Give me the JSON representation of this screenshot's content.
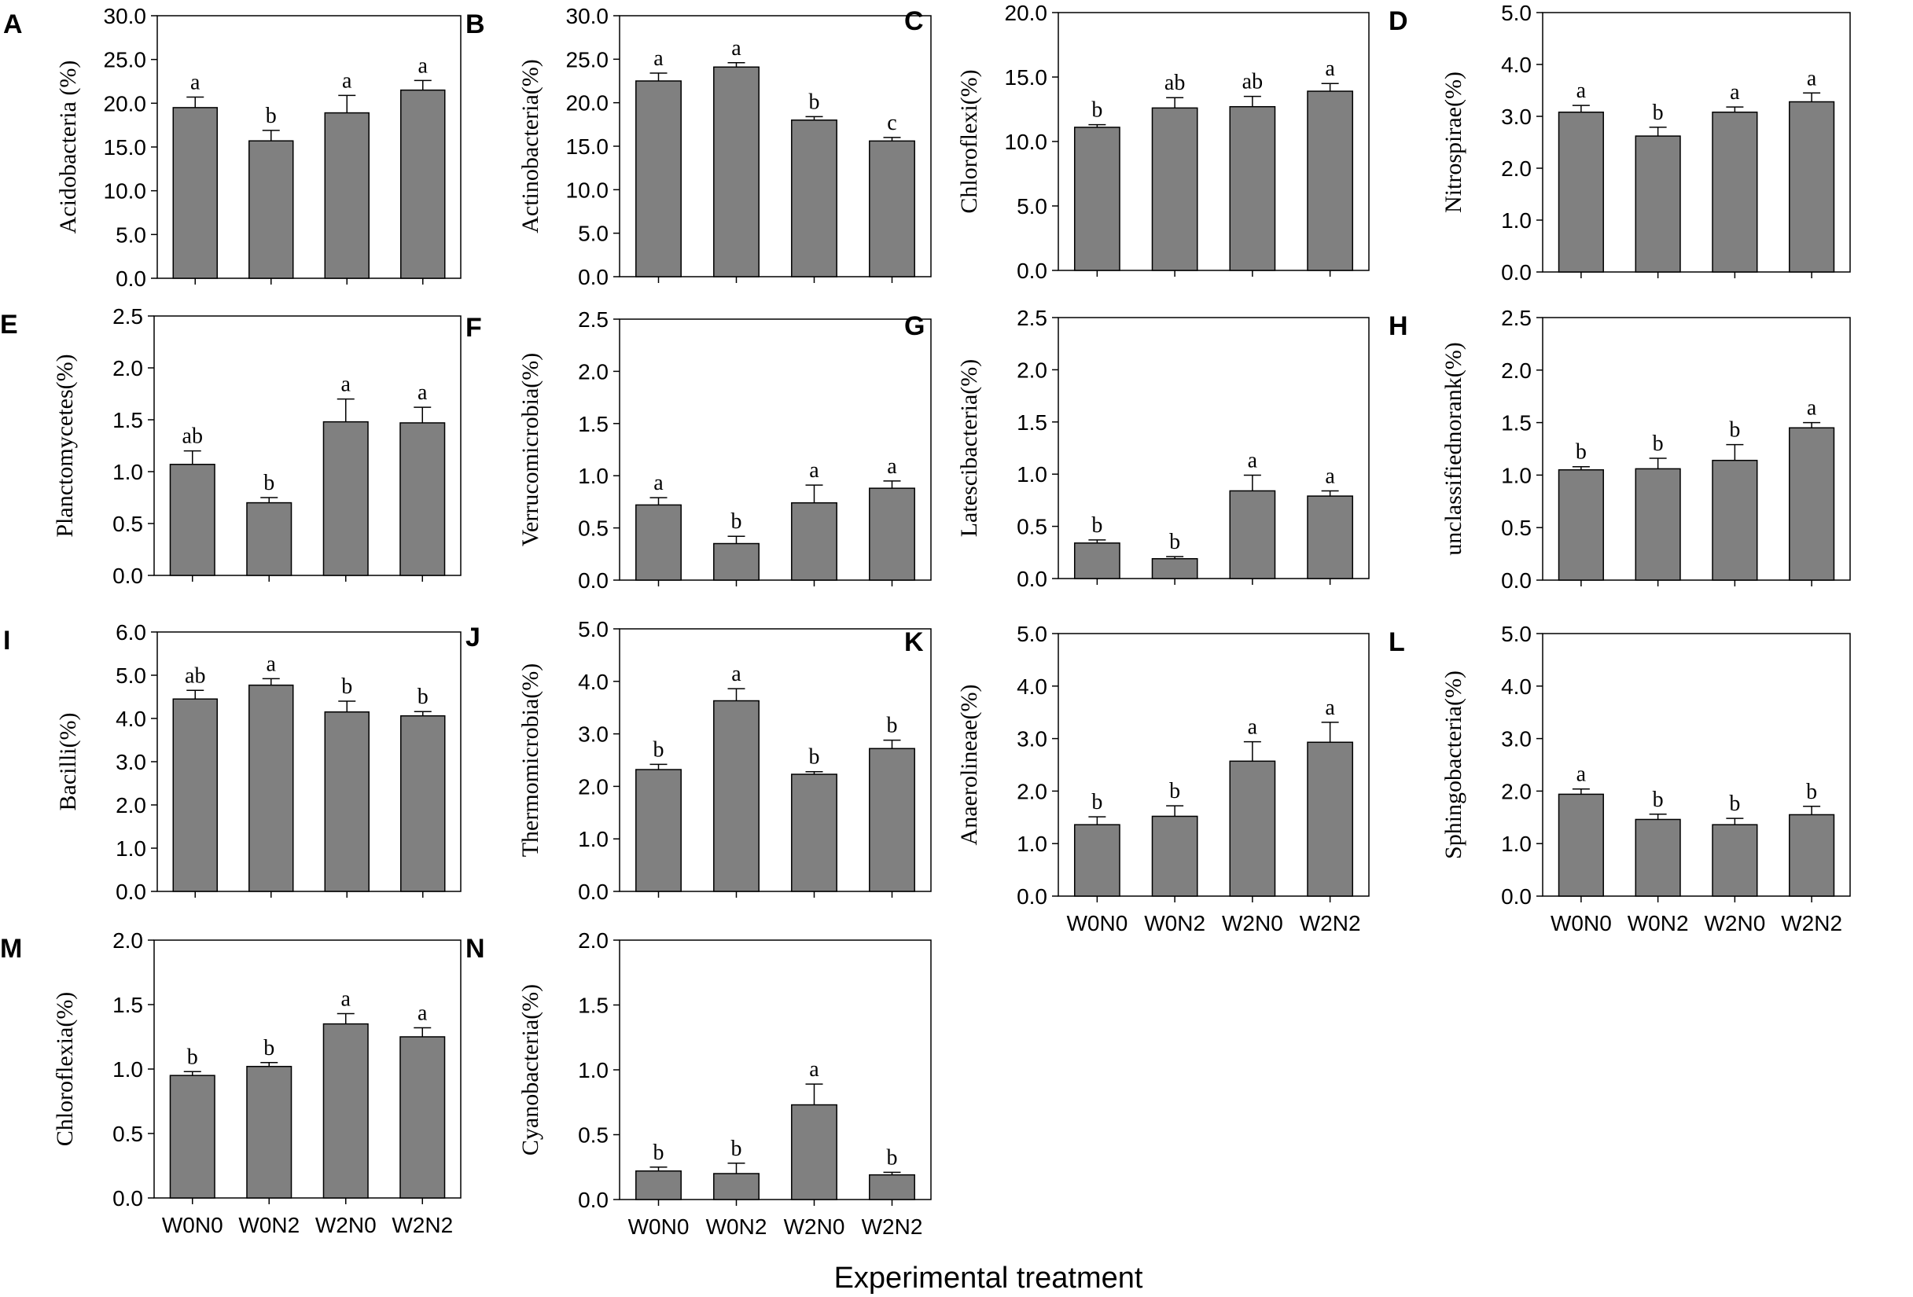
{
  "figure": {
    "xlabel": "Experimental treatment",
    "bar_color": "#808080",
    "edge_color": "#000000"
  },
  "chart_data": [
    {
      "panel": "A",
      "type": "bar",
      "ylabel": "Acidobacteria (%)",
      "categories": [
        "W0N0",
        "W0N2",
        "W2N0",
        "W2N2"
      ],
      "values": [
        19.5,
        15.7,
        18.9,
        21.5
      ],
      "errors": [
        1.2,
        1.2,
        2.0,
        1.1
      ],
      "letters": [
        "a",
        "b",
        "a",
        "a"
      ],
      "ylim": [
        0,
        30
      ],
      "ticks": [
        "0.0",
        "5.0",
        "10.0",
        "15.0",
        "20.0",
        "25.0",
        "30.0"
      ],
      "show_categories": false
    },
    {
      "panel": "B",
      "type": "bar",
      "ylabel": "Actinobacteria(%)",
      "categories": [
        "W0N0",
        "W0N2",
        "W2N0",
        "W2N2"
      ],
      "values": [
        22.5,
        24.1,
        18.0,
        15.6
      ],
      "errors": [
        0.9,
        0.5,
        0.4,
        0.4
      ],
      "letters": [
        "a",
        "a",
        "b",
        "c"
      ],
      "ylim": [
        0,
        30
      ],
      "ticks": [
        "0.0",
        "5.0",
        "10.0",
        "15.0",
        "20.0",
        "25.0",
        "30.0"
      ],
      "show_categories": false
    },
    {
      "panel": "C",
      "type": "bar",
      "ylabel": "Chloroflexi(%)",
      "categories": [
        "W0N0",
        "W0N2",
        "W2N0",
        "W2N2"
      ],
      "values": [
        11.1,
        12.6,
        12.7,
        13.9
      ],
      "errors": [
        0.2,
        0.8,
        0.8,
        0.6
      ],
      "letters": [
        "b",
        "ab",
        "ab",
        "a"
      ],
      "ylim": [
        0,
        20
      ],
      "ticks": [
        "0.0",
        "5.0",
        "10.0",
        "15.0",
        "20.0"
      ],
      "show_categories": false
    },
    {
      "panel": "D",
      "type": "bar",
      "ylabel": "Nitrospirae(%)",
      "categories": [
        "W0N0",
        "W0N2",
        "W2N0",
        "W2N2"
      ],
      "values": [
        3.08,
        2.62,
        3.08,
        3.28
      ],
      "errors": [
        0.13,
        0.17,
        0.1,
        0.17
      ],
      "letters": [
        "a",
        "b",
        "a",
        "a"
      ],
      "ylim": [
        0,
        5
      ],
      "ticks": [
        "0.0",
        "1.0",
        "2.0",
        "3.0",
        "4.0",
        "5.0"
      ],
      "show_categories": false
    },
    {
      "panel": "E",
      "type": "bar",
      "ylabel": "Planctomycetes(%)",
      "categories": [
        "W0N0",
        "W0N2",
        "W2N0",
        "W2N2"
      ],
      "values": [
        1.07,
        0.7,
        1.48,
        1.47
      ],
      "errors": [
        0.13,
        0.05,
        0.22,
        0.15
      ],
      "letters": [
        "ab",
        "b",
        "a",
        "a"
      ],
      "ylim": [
        0,
        2.5
      ],
      "ticks": [
        "0.0",
        "0.5",
        "1.0",
        "1.5",
        "2.0",
        "2.5"
      ],
      "show_categories": false
    },
    {
      "panel": "F",
      "type": "bar",
      "ylabel": "Verrucomicrobia(%)",
      "categories": [
        "W0N0",
        "W0N2",
        "W2N0",
        "W2N2"
      ],
      "values": [
        0.72,
        0.35,
        0.74,
        0.88
      ],
      "errors": [
        0.07,
        0.07,
        0.17,
        0.07
      ],
      "letters": [
        "a",
        "b",
        "a",
        "a"
      ],
      "ylim": [
        0,
        2.5
      ],
      "ticks": [
        "0.0",
        "0.5",
        "1.0",
        "1.5",
        "2.0",
        "2.5"
      ],
      "show_categories": false
    },
    {
      "panel": "G",
      "type": "bar",
      "ylabel": "Latescibacteria(%)",
      "categories": [
        "W0N0",
        "W0N2",
        "W2N0",
        "W2N2"
      ],
      "values": [
        0.34,
        0.19,
        0.84,
        0.79
      ],
      "errors": [
        0.03,
        0.02,
        0.15,
        0.05
      ],
      "letters": [
        "b",
        "b",
        "a",
        "a"
      ],
      "ylim": [
        0,
        2.5
      ],
      "ticks": [
        "0.0",
        "0.5",
        "1.0",
        "1.5",
        "2.0",
        "2.5"
      ],
      "show_categories": false
    },
    {
      "panel": "H",
      "type": "bar",
      "ylabel": "unclassifiednorank(%)",
      "categories": [
        "W0N0",
        "W0N2",
        "W2N0",
        "W2N2"
      ],
      "values": [
        1.05,
        1.06,
        1.14,
        1.45
      ],
      "errors": [
        0.03,
        0.1,
        0.15,
        0.05
      ],
      "letters": [
        "b",
        "b",
        "b",
        "a"
      ],
      "ylim": [
        0,
        2.5
      ],
      "ticks": [
        "0.0",
        "0.5",
        "1.0",
        "1.5",
        "2.0",
        "2.5"
      ],
      "show_categories": false
    },
    {
      "panel": "I",
      "type": "bar",
      "ylabel": "Bacilli(%)",
      "categories": [
        "W0N0",
        "W0N2",
        "W2N0",
        "W2N2"
      ],
      "values": [
        4.45,
        4.77,
        4.15,
        4.06
      ],
      "errors": [
        0.2,
        0.15,
        0.25,
        0.1
      ],
      "letters": [
        "ab",
        "a",
        "b",
        "b"
      ],
      "ylim": [
        0,
        6
      ],
      "ticks": [
        "0.0",
        "1.0",
        "2.0",
        "3.0",
        "4.0",
        "5.0",
        "6.0"
      ],
      "show_categories": false
    },
    {
      "panel": "J",
      "type": "bar",
      "ylabel": "Thermomicrobia(%)",
      "categories": [
        "W0N0",
        "W0N2",
        "W2N0",
        "W2N2"
      ],
      "values": [
        2.32,
        3.63,
        2.23,
        2.72
      ],
      "errors": [
        0.1,
        0.23,
        0.05,
        0.16
      ],
      "letters": [
        "b",
        "a",
        "b",
        "b"
      ],
      "ylim": [
        0,
        5
      ],
      "ticks": [
        "0.0",
        "1.0",
        "2.0",
        "3.0",
        "4.0",
        "5.0"
      ],
      "show_categories": false
    },
    {
      "panel": "K",
      "type": "bar",
      "ylabel": "Anaerolineae(%)",
      "categories": [
        "W0N0",
        "W0N2",
        "W2N0",
        "W2N2"
      ],
      "values": [
        1.36,
        1.52,
        2.57,
        2.93
      ],
      "errors": [
        0.15,
        0.2,
        0.37,
        0.38
      ],
      "letters": [
        "b",
        "b",
        "a",
        "a"
      ],
      "ylim": [
        0,
        5
      ],
      "ticks": [
        "0.0",
        "1.0",
        "2.0",
        "3.0",
        "4.0",
        "5.0"
      ],
      "show_categories": true
    },
    {
      "panel": "L",
      "type": "bar",
      "ylabel": "Sphingobacteria(%)",
      "categories": [
        "W0N0",
        "W0N2",
        "W2N0",
        "W2N2"
      ],
      "values": [
        1.94,
        1.46,
        1.36,
        1.55
      ],
      "errors": [
        0.1,
        0.1,
        0.12,
        0.16
      ],
      "letters": [
        "a",
        "b",
        "b",
        "b"
      ],
      "ylim": [
        0,
        5
      ],
      "ticks": [
        "0.0",
        "1.0",
        "2.0",
        "3.0",
        "4.0",
        "5.0"
      ],
      "show_categories": true
    },
    {
      "panel": "M",
      "type": "bar",
      "ylabel": "Chloroflexia(%)",
      "categories": [
        "W0N0",
        "W0N2",
        "W2N0",
        "W2N2"
      ],
      "values": [
        0.95,
        1.02,
        1.35,
        1.25
      ],
      "errors": [
        0.03,
        0.03,
        0.08,
        0.07
      ],
      "letters": [
        "b",
        "b",
        "a",
        "a"
      ],
      "ylim": [
        0,
        2
      ],
      "ticks": [
        "0.0",
        "0.5",
        "1.0",
        "1.5",
        "2.0"
      ],
      "show_categories": true
    },
    {
      "panel": "N",
      "type": "bar",
      "ylabel": "Cyanobacteria(%)",
      "categories": [
        "W0N0",
        "W0N2",
        "W2N0",
        "W2N2"
      ],
      "values": [
        0.22,
        0.2,
        0.73,
        0.19
      ],
      "errors": [
        0.03,
        0.08,
        0.16,
        0.02
      ],
      "letters": [
        "b",
        "b",
        "a",
        "b"
      ],
      "ylim": [
        0,
        2
      ],
      "ticks": [
        "0.0",
        "0.5",
        "1.0",
        "1.5",
        "2.0"
      ],
      "show_categories": true
    }
  ]
}
